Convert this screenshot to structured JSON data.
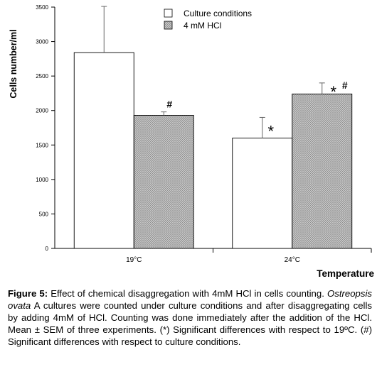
{
  "chart_data": {
    "type": "bar",
    "categories": [
      "19°C",
      "24°C"
    ],
    "series": [
      {
        "name": "Culture conditions",
        "values": [
          2840,
          1600
        ],
        "errors": [
          670,
          300
        ],
        "pattern": "none",
        "fill": "#ffffff"
      },
      {
        "name": "4 mM HCl",
        "values": [
          1930,
          2240
        ],
        "errors": [
          50,
          160
        ],
        "pattern": "crosshatch",
        "fill": "#cfcfcf"
      }
    ],
    "annotations": [
      {
        "category_index": 0,
        "series_index": 1,
        "text": "#"
      },
      {
        "category_index": 1,
        "series_index": 0,
        "text": "*"
      },
      {
        "category_index": 1,
        "series_index": 1,
        "text": "* #"
      }
    ],
    "xlabel": "Temperature",
    "ylabel": "Cells number/ml",
    "ylim": [
      0,
      3500
    ],
    "yticks": [
      0,
      500,
      1000,
      1500,
      2000,
      2500,
      3000,
      3500
    ],
    "grid": false,
    "legend_position": "top-center"
  },
  "caption": {
    "label": "Figure 5:",
    "line1_text": " Effect of chemical disaggregation with 4mM HCl in cells counting.",
    "species": "Ostreopsis ovata",
    "rest_text": " A cultures were counted under culture conditions and after disaggregating cells by adding 4mM of HCl. Counting was done immediately after the addition of the HCl. Mean ± SEM of three experiments. (*) Significant differences with respect to 19ºC. (#) Significant differences with respect to culture conditions."
  }
}
